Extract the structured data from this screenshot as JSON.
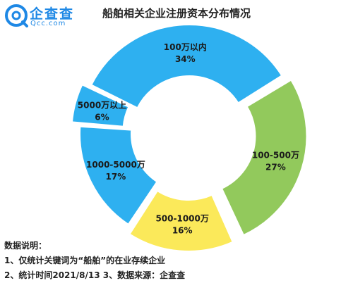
{
  "logo": {
    "name": "企查查",
    "domain": "Qcc.com",
    "icon": "qcc-logo-icon",
    "color": "#1e88e5"
  },
  "chart_data": {
    "type": "pie",
    "title": "船舶相关企业注册资本分布情况",
    "donut": true,
    "categories": [
      "100万以内",
      "100-500万",
      "500-1000万",
      "1000-5000万",
      "5000万以上"
    ],
    "values": [
      34,
      27,
      16,
      17,
      6
    ],
    "value_labels": [
      "34%",
      "27%",
      "16%",
      "17%",
      "6%"
    ],
    "colors": [
      "#2eb0f0",
      "#92c95c",
      "#fbe95a",
      "#2eb0f0",
      "#2eb0f0"
    ],
    "exploded": [
      "100-500万",
      "500-1000万",
      "5000万以上"
    ]
  },
  "notes": {
    "heading": "数据说明：",
    "line1": "1、仅统计关键词为“船舶”的在业存续企业",
    "line2": "2、统计时间2021/8/13   3、数据来源：企查查"
  }
}
